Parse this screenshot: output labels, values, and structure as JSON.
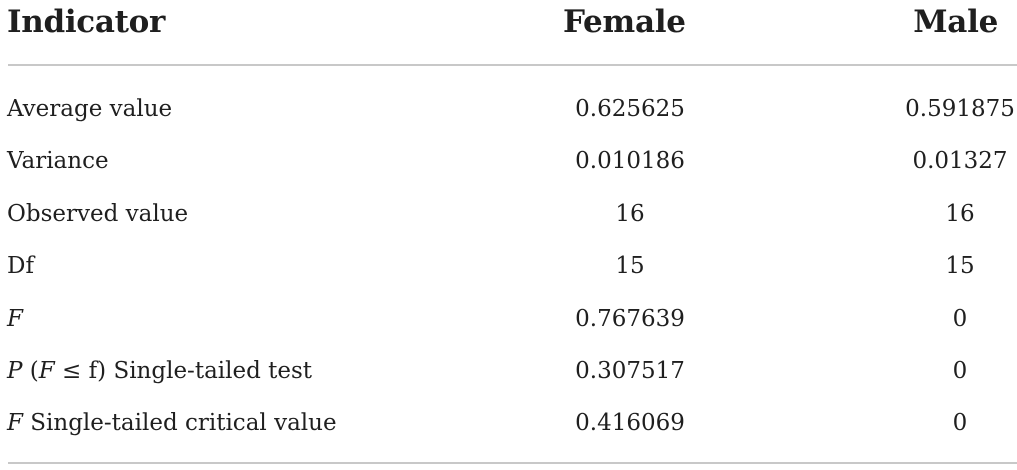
{
  "table": {
    "headers": {
      "indicator": "Indicator",
      "female": "Female",
      "male": "Male"
    },
    "rows": [
      {
        "indicator": "Average value",
        "female": "0.625625",
        "male": "0.591875"
      },
      {
        "indicator": "Variance",
        "female": "0.010186",
        "male": "0.01327"
      },
      {
        "indicator": "Observed value",
        "female": "16",
        "male": "16"
      },
      {
        "indicator": "Df",
        "female": "15",
        "male": "15"
      },
      {
        "indicator_italic": "F",
        "female": "0.767639",
        "male": "0"
      },
      {
        "indicator_p": "P",
        "indicator_mid": " (",
        "indicator_f": "F",
        "indicator_tail": " ≤ f) Single-tailed test",
        "female": "0.307517",
        "male": "0"
      },
      {
        "indicator_f": "F",
        "indicator_tail": " Single-tailed critical value",
        "female": "0.416069",
        "male": "0"
      }
    ]
  }
}
